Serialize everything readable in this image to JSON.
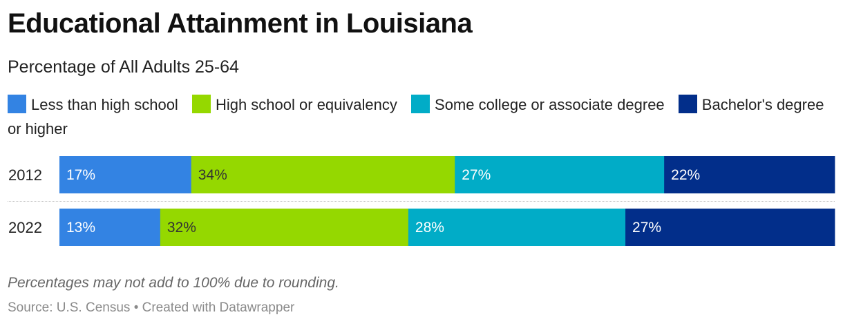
{
  "chart_data": {
    "type": "bar",
    "orientation": "horizontal",
    "stacked": true,
    "title": "Educational Attainment in Louisiana",
    "subtitle": "Percentage of All Adults 25-64",
    "categories": [
      "2012",
      "2022"
    ],
    "series": [
      {
        "name": "Less than high school",
        "color": "#3383e3",
        "label_color": "#ffffff",
        "values": [
          17,
          13
        ],
        "labels": [
          "17%",
          "13%"
        ]
      },
      {
        "name": "High school or equivalency",
        "color": "#95d800",
        "label_color": "#333333",
        "values": [
          34,
          32
        ],
        "labels": [
          "34%",
          "32%"
        ]
      },
      {
        "name": "Some college or associate degree",
        "color": "#01acc7",
        "label_color": "#ffffff",
        "values": [
          27,
          28
        ],
        "labels": [
          "27%",
          "28%"
        ]
      },
      {
        "name": "Bachelor's degree or higher",
        "color": "#022e8a",
        "label_color": "#ffffff",
        "values": [
          22,
          27
        ],
        "labels": [
          "22%",
          "27%"
        ]
      }
    ],
    "legend_position": "top",
    "grid": false
  },
  "note": "Percentages may not add to 100% due to rounding.",
  "source": "Source: U.S. Census • Created with Datawrapper"
}
